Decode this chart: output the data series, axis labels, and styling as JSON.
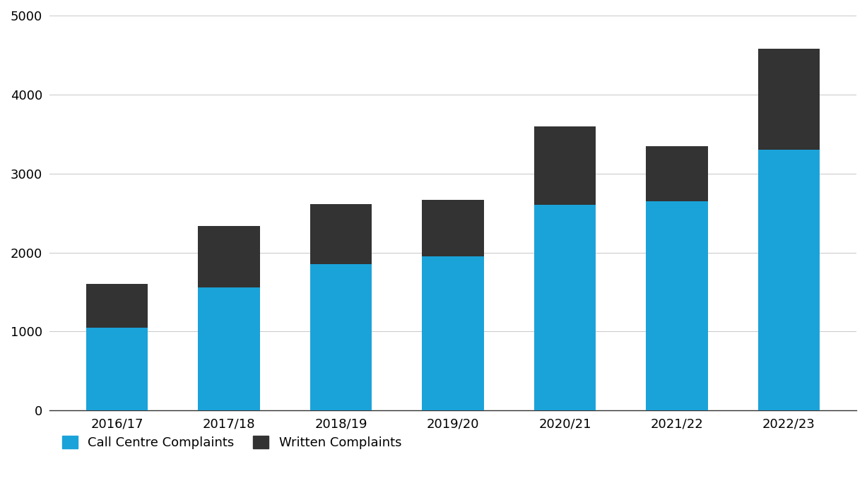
{
  "categories": [
    "2016/17",
    "2017/18",
    "2018/19",
    "2019/20",
    "2020/21",
    "2021/22",
    "2022/23"
  ],
  "call_centre": [
    1050,
    1560,
    1850,
    1950,
    2600,
    2650,
    3300
  ],
  "written": [
    550,
    780,
    760,
    720,
    1000,
    700,
    1280
  ],
  "call_centre_color": "#1aa3d9",
  "written_color": "#333333",
  "ylabel_values": [
    0,
    1000,
    2000,
    3000,
    4000,
    5000
  ],
  "ylim": [
    0,
    5000
  ],
  "legend_call_centre": "Call Centre Complaints",
  "legend_written": "Written Complaints",
  "background_color": "#ffffff",
  "grid_color": "#cccccc",
  "bar_width": 0.55
}
